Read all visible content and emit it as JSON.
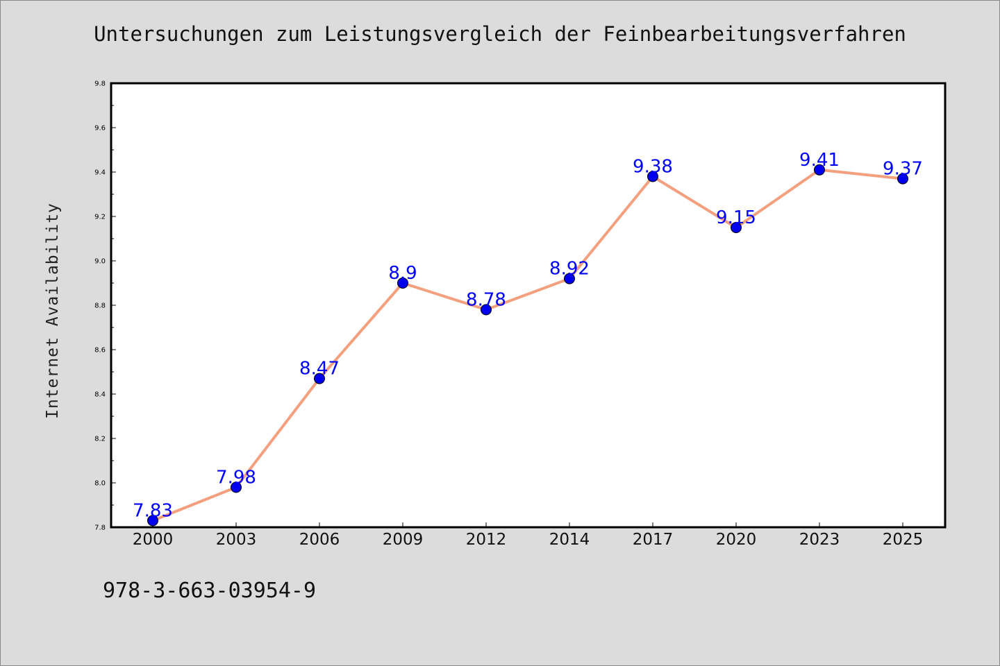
{
  "chart_data": {
    "type": "line",
    "title": "Untersuchungen zum Leistungsvergleich der Feinbearbeitungsverfahren",
    "xlabel": "",
    "ylabel": "Internet Availability",
    "categories": [
      "2000",
      "2003",
      "2006",
      "2009",
      "2012",
      "2014",
      "2017",
      "2020",
      "2023",
      "2025"
    ],
    "series": [
      {
        "values": [
          7.83,
          7.98,
          8.47,
          8.9,
          8.78,
          8.92,
          9.38,
          9.15,
          9.41,
          9.37
        ],
        "data_labels": [
          "7.83",
          "7.98",
          "8.47",
          "8.9",
          "8.78",
          "8.92",
          "9.38",
          "9.15",
          "9.41",
          "9.37"
        ],
        "line_color": "#f4a07e",
        "marker_color": "#0000ee"
      }
    ],
    "ylim": [
      7.8,
      9.8
    ],
    "yticks": [
      "7.8",
      "8.0",
      "8.2",
      "8.4",
      "8.6",
      "8.8",
      "9.0",
      "9.2",
      "9.4",
      "9.6",
      "9.8"
    ],
    "grid": false,
    "legend": "none",
    "label_color": "#0000ff"
  },
  "footer": {
    "isbn": "978-3-663-03954-9"
  }
}
